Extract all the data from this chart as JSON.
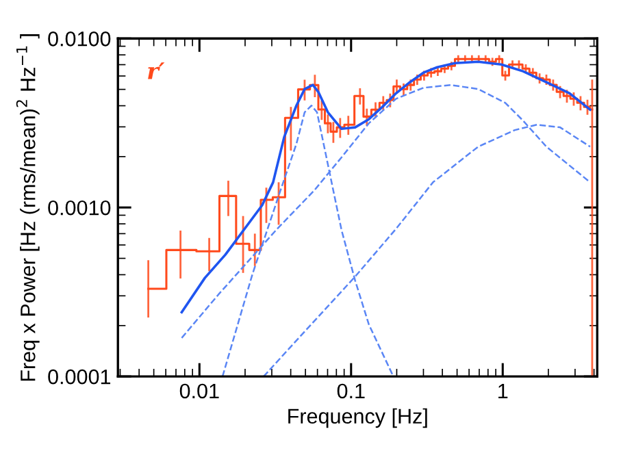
{
  "chart_data": {
    "type": "line",
    "xlabel": "Frequency [Hz]",
    "ylabel": "Freq x Power [Hz (rms/mean)$^{2}$ Hz$^{−1}$ ]",
    "annotations": [
      "r′"
    ],
    "log": "xy",
    "xlim": [
      0.0029,
      4.2
    ],
    "ylim": [
      0.0001,
      0.01
    ],
    "xticks": [
      {
        "value": 0.01,
        "label": "0.01"
      },
      {
        "value": 0.1,
        "label": "0.1"
      },
      1
    ],
    "yticks": [
      {
        "value": 0.0001,
        "label": "0.0001"
      },
      {
        "value": 0.001,
        "label": "0.0010"
      },
      {
        "value": 0.01,
        "label": "0.0100"
      }
    ],
    "grid": false,
    "series": [
      {
        "type": "step",
        "color": "#ff4a1c",
        "x": [
          0.0046,
          0.0075,
          0.0116,
          0.0155,
          0.0194,
          0.0232,
          0.0276,
          0.0333,
          0.0401,
          0.0494,
          0.0577,
          0.064,
          0.0703,
          0.0764,
          0.0847,
          0.0959,
          0.1145,
          0.127,
          0.145,
          0.163,
          0.181,
          0.2,
          0.222,
          0.247,
          0.273,
          0.303,
          0.337,
          0.373,
          0.414,
          0.459,
          0.509,
          0.565,
          0.627,
          0.695,
          0.771,
          0.855,
          0.948,
          1.04,
          1.16,
          1.28,
          1.42,
          1.58,
          1.75,
          1.94,
          2.15,
          2.39,
          2.65,
          2.94,
          3.26,
          3.62,
          3.89
        ],
        "values": [
          0.00033,
          0.00056,
          0.00055,
          0.00117,
          0.00061,
          0.00056,
          0.00111,
          0.00115,
          0.00339,
          0.005,
          0.0053,
          0.0038,
          0.00315,
          0.00281,
          0.00298,
          0.00309,
          0.00457,
          0.00345,
          0.00379,
          0.00416,
          0.00432,
          0.00521,
          0.00502,
          0.00531,
          0.00572,
          0.00604,
          0.00628,
          0.0064,
          0.00664,
          0.00689,
          0.00756,
          0.00756,
          0.00756,
          0.00756,
          0.00756,
          0.00728,
          0.00756,
          0.00604,
          0.00702,
          0.00702,
          0.00664,
          0.00628,
          0.00582,
          0.00572,
          0.00531,
          0.00483,
          0.00457,
          0.0044,
          0.00416,
          0.00394,
          0.0038
        ],
        "errors": [
          [
            0.000223,
            0.000488
          ],
          [
            0.00038,
            0.00073
          ],
          [
            0.00042,
            0.00066
          ],
          [
            0.00089,
            0.00144
          ],
          [
            0.00041,
            0.00089
          ],
          [
            0.00045,
            0.0007
          ],
          [
            0.00081,
            0.00131
          ],
          [
            0.00079,
            0.00141
          ],
          [
            0.00217,
            0.00394
          ],
          0.0007,
          0.0008,
          0.0005,
          0.0004,
          0.0004,
          0.0004,
          0.0004,
          0.0005,
          0.0004,
          0.0004,
          0.0004,
          0.0004,
          0.0005,
          0.0004,
          0.0004,
          0.0004,
          0.0004,
          0.0004,
          0.0004,
          0.0004,
          0.0004,
          0.0004,
          0.0004,
          0.0004,
          0.0004,
          0.0004,
          0.0004,
          0.0004,
          0.0004,
          0.0004,
          0.0004,
          0.0004,
          0.0004,
          0.0004,
          0.0004,
          0.0004,
          0.0004,
          0.0004,
          0.0004,
          0.0004,
          0.0004,
          [
            0.0001,
            0.00572
          ]
        ]
      },
      {
        "line_style": "solid",
        "color": "#1f55f0",
        "x": [
          0.00764,
          0.01086,
          0.01483,
          0.0259,
          0.0306,
          0.0362,
          0.0436,
          0.0494,
          0.056,
          0.0608,
          0.0703,
          0.0865,
          0.1064,
          0.131,
          0.161,
          0.198,
          0.244,
          0.3,
          0.37,
          0.484,
          0.689,
          0.98,
          1.36,
          1.94,
          2.76,
          3.77
        ],
        "values": [
          0.00024,
          0.000383,
          0.000526,
          0.00103,
          0.00141,
          0.00261,
          0.00401,
          0.00502,
          0.00531,
          0.00483,
          0.00366,
          0.00292,
          0.00298,
          0.00333,
          0.00394,
          0.00474,
          0.00551,
          0.00628,
          0.00676,
          0.00715,
          0.00728,
          0.00702,
          0.0064,
          0.00551,
          0.00474,
          0.00379
        ]
      },
      {
        "line_style": "dashed",
        "color": "#5a86f5",
        "x": [
          0.00764,
          0.01337,
          0.0326,
          0.0571,
          0.0865,
          0.131,
          0.198,
          0.3,
          0.455,
          0.689,
          1.04,
          1.36,
          1.94,
          3.77
        ],
        "values": [
          0.000169,
          0.000306,
          0.000748,
          0.00126,
          0.00198,
          0.00315,
          0.0044,
          0.00511,
          0.00531,
          0.00502,
          0.00416,
          0.00327,
          0.00229,
          0.00141
        ]
      },
      {
        "line_style": "dashed",
        "color": "#5a86f5",
        "x": [
          0.0142,
          0.0224,
          0.034,
          0.0436,
          0.0494,
          0.0548,
          0.0596,
          0.0703,
          0.0865,
          0.1064,
          0.131,
          0.19
        ],
        "values": [
          0.0001,
          0.000405,
          0.00124,
          0.00238,
          0.00366,
          0.00401,
          0.00366,
          0.0018,
          0.000735,
          0.000369,
          0.000203,
          0.0001
        ]
      },
      {
        "line_style": "dashed",
        "color": "#5a86f5",
        "x": [
          0.0265,
          0.0515,
          0.1064,
          0.198,
          0.347,
          0.689,
          1.2,
          1.68,
          2.39,
          3.77
        ],
        "values": [
          0.0001,
          0.000192,
          0.00039,
          0.000748,
          0.00141,
          0.00229,
          0.00287,
          0.00309,
          0.00298,
          0.00229
        ]
      }
    ]
  }
}
